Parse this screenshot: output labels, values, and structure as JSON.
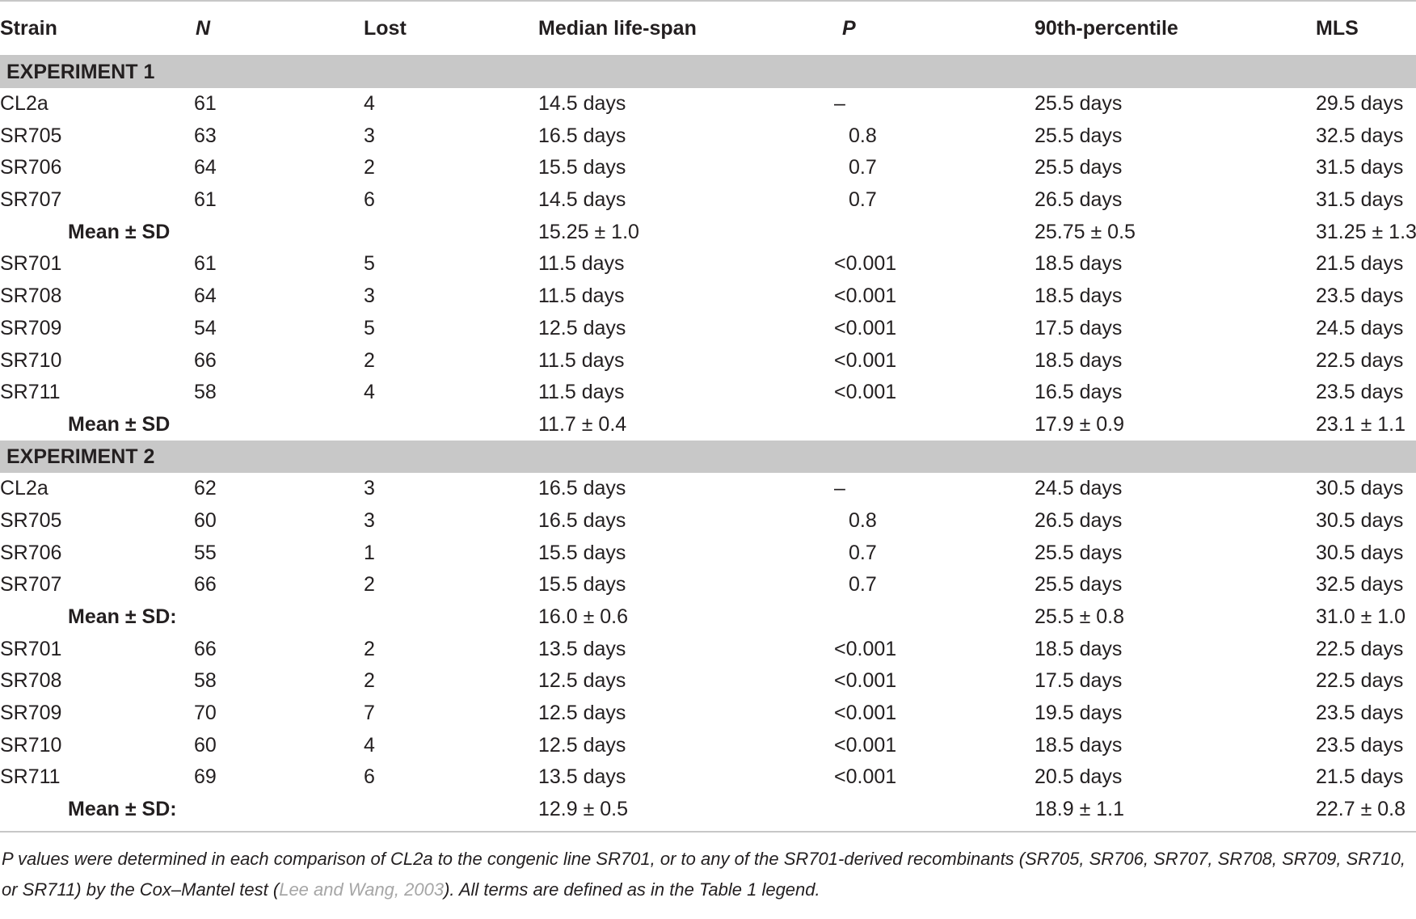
{
  "columns": [
    "Strain",
    "N",
    "Lost",
    "Median life-span",
    "P",
    "90th-percentile",
    "MLS"
  ],
  "experiment1": {
    "title": "EXPERIMENT 1",
    "rows": [
      [
        "CL2a",
        "61",
        "4",
        "14.5 days",
        "–",
        "25.5 days",
        "29.5 days"
      ],
      [
        "SR705",
        "63",
        "3",
        "16.5 days",
        "0.8",
        "25.5 days",
        "32.5 days"
      ],
      [
        "SR706",
        "64",
        "2",
        "15.5 days",
        "0.7",
        "25.5 days",
        "31.5 days"
      ],
      [
        "SR707",
        "61",
        "6",
        "14.5 days",
        "0.7",
        "26.5 days",
        "31.5 days"
      ]
    ],
    "mean1": {
      "label": "Mean ± SD",
      "median": "15.25 ± 1.0",
      "p90": "25.75 ± 0.5",
      "mls": "31.25 ± 1.3"
    },
    "rows2": [
      [
        "SR701",
        "61",
        "5",
        "11.5 days",
        "<0.001",
        "18.5 days",
        "21.5 days"
      ],
      [
        "SR708",
        "64",
        "3",
        "11.5 days",
        "<0.001",
        "18.5 days",
        "23.5 days"
      ],
      [
        "SR709",
        "54",
        "5",
        "12.5 days",
        "<0.001",
        "17.5 days",
        "24.5 days"
      ],
      [
        "SR710",
        "66",
        "2",
        "11.5 days",
        "<0.001",
        "18.5 days",
        "22.5 days"
      ],
      [
        "SR711",
        "58",
        "4",
        "11.5 days",
        "<0.001",
        "16.5 days",
        "23.5 days"
      ]
    ],
    "mean2": {
      "label": "Mean ± SD",
      "median": "11.7 ± 0.4",
      "p90": "17.9 ± 0.9",
      "mls": "23.1 ± 1.1"
    }
  },
  "experiment2": {
    "title": "EXPERIMENT 2",
    "rows": [
      [
        "CL2a",
        "62",
        "3",
        "16.5 days",
        "–",
        "24.5 days",
        "30.5 days"
      ],
      [
        "SR705",
        "60",
        "3",
        "16.5 days",
        "0.8",
        "26.5 days",
        "30.5 days"
      ],
      [
        "SR706",
        "55",
        "1",
        "15.5 days",
        "0.7",
        "25.5 days",
        "30.5 days"
      ],
      [
        "SR707",
        "66",
        "2",
        "15.5 days",
        "0.7",
        "25.5 days",
        "32.5 days"
      ]
    ],
    "mean1": {
      "label": "Mean ± SD:",
      "median": "16.0 ± 0.6",
      "p90": "25.5 ± 0.8",
      "mls": "31.0 ± 1.0"
    },
    "rows2": [
      [
        "SR701",
        "66",
        "2",
        "13.5 days",
        "<0.001",
        "18.5 days",
        "22.5 days"
      ],
      [
        "SR708",
        "58",
        "2",
        "12.5 days",
        "<0.001",
        "17.5 days",
        "22.5 days"
      ],
      [
        "SR709",
        "70",
        "7",
        "12.5 days",
        "<0.001",
        "19.5 days",
        "23.5 days"
      ],
      [
        "SR710",
        "60",
        "4",
        "12.5 days",
        "<0.001",
        "18.5 days",
        "23.5 days"
      ],
      [
        "SR711",
        "69",
        "6",
        "13.5 days",
        "<0.001",
        "20.5 days",
        "21.5 days"
      ]
    ],
    "mean2": {
      "label": "Mean ± SD:",
      "median": "12.9 ± 0.5",
      "p90": "18.9 ± 1.1",
      "mls": "22.7 ± 0.8"
    }
  },
  "footnote": {
    "text_before": "P values were determined in each comparison of CL2a to the congenic line SR701, or to any of the SR701-derived recombinants (SR705, SR706, SR707, SR708, SR709, SR710, or SR711) by the Cox–Mantel test (",
    "reference": "Lee and Wang, 2003",
    "text_after": "). All terms are defined as in the Table 1 legend."
  }
}
